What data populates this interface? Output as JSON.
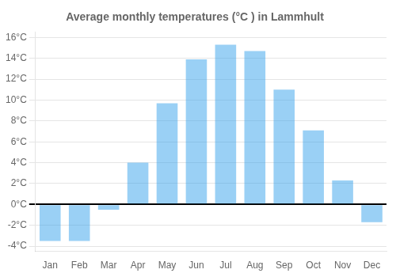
{
  "chart_data": {
    "type": "bar",
    "title": "Average monthly temperatures (°C ) in Lammhult",
    "categories": [
      "Jan",
      "Feb",
      "Mar",
      "Apr",
      "May",
      "Jun",
      "Jul",
      "Aug",
      "Sep",
      "Oct",
      "Nov",
      "Dec"
    ],
    "values": [
      -3.5,
      -3.5,
      -0.5,
      4.0,
      9.7,
      13.9,
      15.3,
      14.7,
      11.0,
      7.1,
      2.3,
      -1.7
    ],
    "ylim": [
      -4.5,
      16.5
    ],
    "yticks": [
      {
        "value": -4,
        "label": "-4°C"
      },
      {
        "value": -2,
        "label": "-2°C"
      },
      {
        "value": 0,
        "label": "0°C"
      },
      {
        "value": 2,
        "label": "2°C"
      },
      {
        "value": 4,
        "label": "4°C"
      },
      {
        "value": 6,
        "label": "6°C"
      },
      {
        "value": 8,
        "label": "8°C"
      },
      {
        "value": 10,
        "label": "10°C"
      },
      {
        "value": 12,
        "label": "12°C"
      },
      {
        "value": 14,
        "label": "14°C"
      },
      {
        "value": 16,
        "label": "16°C"
      }
    ],
    "grid": true
  }
}
